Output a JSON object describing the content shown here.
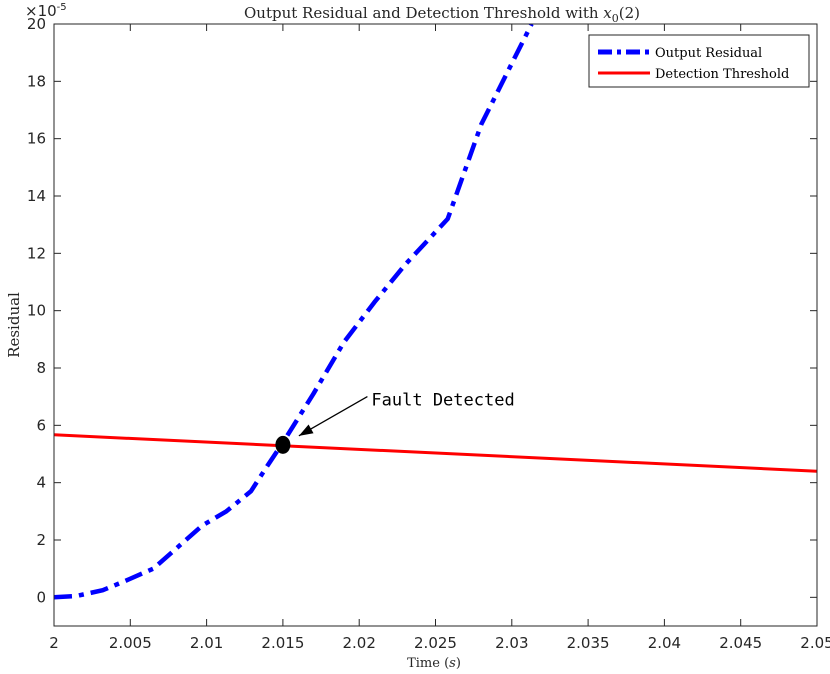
{
  "chart_data": {
    "type": "line",
    "title": "Output Residual and Detection Threshold with x0(2)",
    "xlabel": "Time (s)",
    "ylabel": "Residual",
    "y_exponent_label": "×10-5",
    "xlim": [
      2,
      2.05
    ],
    "ylim": [
      -1,
      20
    ],
    "x_ticks": [
      "2",
      "2.005",
      "2.01",
      "2.015",
      "2.02",
      "2.025",
      "2.03",
      "2.035",
      "2.04",
      "2.045",
      "2.05"
    ],
    "y_ticks": [
      "0",
      "2",
      "4",
      "6",
      "8",
      "10",
      "12",
      "14",
      "16",
      "18",
      "20"
    ],
    "grid": false,
    "legend_position": "top-right",
    "series": [
      {
        "name": "Output Residual",
        "color": "#0000ff",
        "style": "dash-dot",
        "x": [
          2.0,
          2.0015,
          2.0032,
          2.0048,
          2.0065,
          2.008,
          2.0097,
          2.0113,
          2.0129,
          2.014,
          2.015,
          2.017,
          2.019,
          2.021,
          2.023,
          2.0258,
          2.028,
          2.0313
        ],
        "y": [
          0.0,
          0.05,
          0.25,
          0.6,
          1.0,
          1.7,
          2.5,
          3.0,
          3.7,
          4.6,
          5.4,
          7.1,
          8.9,
          10.3,
          11.6,
          13.2,
          16.5,
          20.0
        ]
      },
      {
        "name": "Detection Threshold",
        "color": "#ff0000",
        "style": "solid",
        "x": [
          2.0,
          2.05
        ],
        "y": [
          5.67,
          4.4
        ]
      }
    ],
    "annotations": [
      {
        "text": "Fault Detected",
        "x": 2.015,
        "y": 5.32,
        "marker": "black-dot",
        "label_x": 2.0208,
        "label_y": 6.9
      }
    ]
  }
}
